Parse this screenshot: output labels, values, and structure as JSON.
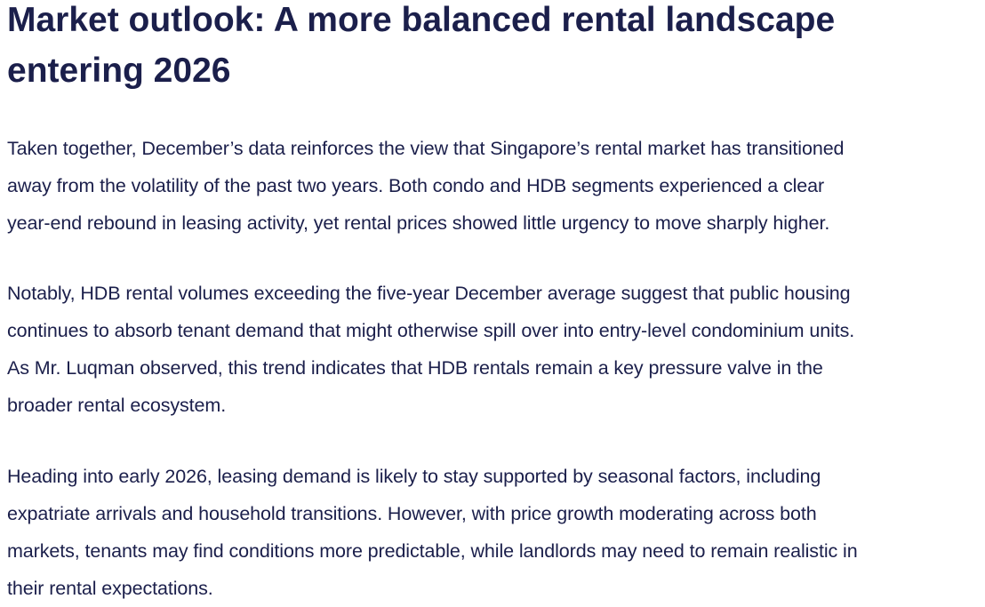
{
  "article": {
    "headline_line1": "Market outlook: A more balanced rental landscape",
    "headline_line2": "entering 2026",
    "paragraphs": [
      {
        "lines": [
          "Taken together, December’s data reinforces the view that Singapore’s rental market has transitioned",
          "away from the volatility of the past two years. Both condo and HDB segments experienced a clear",
          "year-end rebound in leasing activity, yet rental prices showed little urgency to move sharply higher."
        ]
      },
      {
        "lines": [
          "Notably, HDB rental volumes exceeding the five-year December average suggest that public housing",
          "continues to absorb tenant demand that might otherwise spill over into entry-level condominium units.",
          "As Mr. Luqman observed, this trend indicates that HDB rentals remain a key pressure valve in the",
          "broader rental ecosystem."
        ]
      },
      {
        "lines": [
          "Heading into early 2026, leasing demand is likely to stay supported by seasonal factors, including",
          "expatriate arrivals and household transitions. However, with price growth moderating across both",
          "markets, tenants may find conditions more predictable, while landlords may need to remain realistic in",
          "their rental expectations."
        ]
      }
    ]
  },
  "colors": {
    "text": "#1b1f4b",
    "background": "#ffffff"
  }
}
